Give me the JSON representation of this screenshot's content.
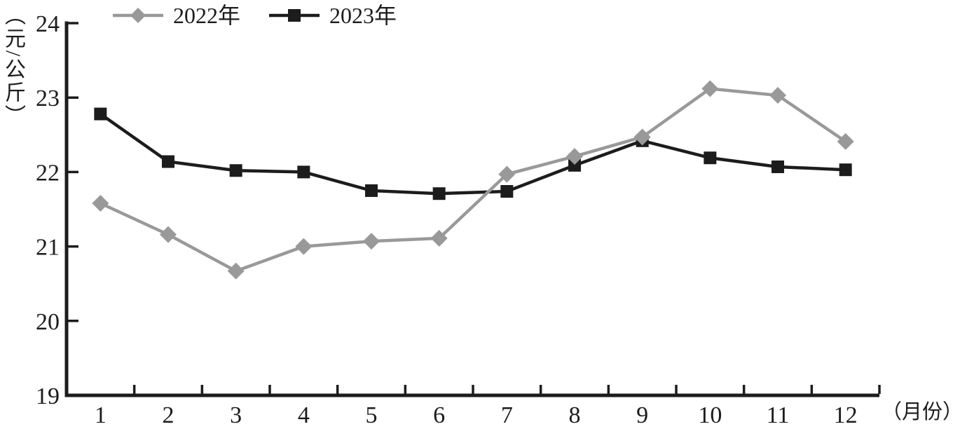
{
  "chart_data": {
    "type": "line",
    "title": "",
    "ylabel": "（元/公斤）",
    "xlabel": "（月份）",
    "ylim": [
      19,
      24
    ],
    "yticks": [
      19,
      20,
      21,
      22,
      23,
      24
    ],
    "grid": false,
    "legend_position": "top-left",
    "categories": [
      "1",
      "2",
      "3",
      "4",
      "5",
      "6",
      "7",
      "8",
      "9",
      "10",
      "11",
      "12"
    ],
    "series": [
      {
        "name": "2022年",
        "marker": "diamond",
        "color": "#999999",
        "values": [
          21.58,
          21.16,
          20.67,
          21.0,
          21.07,
          21.11,
          21.97,
          22.21,
          22.47,
          23.12,
          23.03,
          22.41
        ]
      },
      {
        "name": "2023年",
        "marker": "square",
        "color": "#1c1c1c",
        "values": [
          22.78,
          22.14,
          22.02,
          22.0,
          21.75,
          21.71,
          21.74,
          22.09,
          22.42,
          22.19,
          22.07,
          22.03
        ]
      }
    ]
  },
  "colors": {
    "background": "#ffffff",
    "axis": "#1c1c1c",
    "text": "#1c1c1c"
  }
}
